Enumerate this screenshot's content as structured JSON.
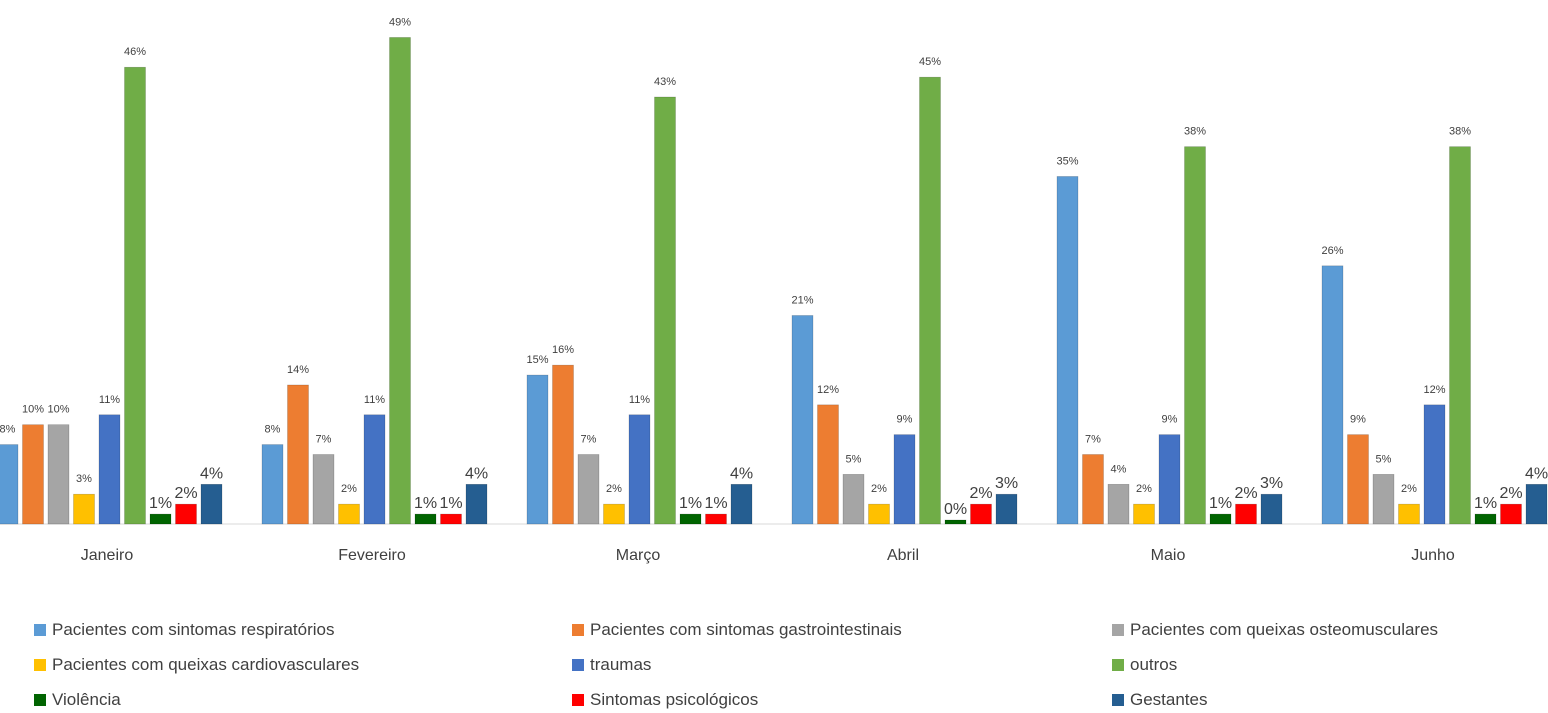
{
  "chart_data": {
    "type": "bar",
    "categories": [
      "Janeiro",
      "Fevereiro",
      "Março",
      "Abril",
      "Maio",
      "Junho"
    ],
    "series": [
      {
        "name": "Pacientes com sintomas respiratórios",
        "color": "#5B9BD5",
        "values": [
          8,
          8,
          15,
          21,
          35,
          26
        ],
        "labels": [
          "8%",
          "8%",
          "15%",
          "21%",
          "35%",
          "26%"
        ]
      },
      {
        "name": "Pacientes com sintomas gastrointestinais",
        "color": "#ED7D31",
        "values": [
          10,
          14,
          16,
          12,
          7,
          9
        ],
        "labels": [
          "10%",
          "14%",
          "16%",
          "12%",
          "7%",
          "9%"
        ]
      },
      {
        "name": "Pacientes com queixas osteomusculares",
        "color": "#A5A5A5",
        "values": [
          10,
          7,
          7,
          5,
          4,
          5
        ],
        "labels": [
          "10%",
          "7%",
          "7%",
          "5%",
          "4%",
          "5%"
        ]
      },
      {
        "name": "Pacientes com queixas cardiovasculares",
        "color": "#FFC000",
        "values": [
          3,
          2,
          2,
          2,
          2,
          2
        ],
        "labels": [
          "3%",
          "2%",
          "2%",
          "2%",
          "2%",
          "2%"
        ]
      },
      {
        "name": "traumas",
        "color": "#4472C4",
        "values": [
          11,
          11,
          11,
          9,
          9,
          12
        ],
        "labels": [
          "11%",
          "11%",
          "11%",
          "9%",
          "9%",
          "12%"
        ]
      },
      {
        "name": "outros",
        "color": "#70AD47",
        "values": [
          46,
          49,
          43,
          45,
          38,
          38
        ],
        "labels": [
          "46%",
          "49%",
          "43%",
          "45%",
          "38%",
          "38%"
        ]
      },
      {
        "name": "Violência",
        "color": "#006400",
        "values": [
          1,
          1,
          1,
          0,
          1,
          1
        ],
        "labels": [
          "1%",
          "1%",
          "1%",
          "0%",
          "1%",
          "1%"
        ]
      },
      {
        "name": "Sintomas psicológicos",
        "color": "#FF0000",
        "values": [
          2,
          1,
          1,
          2,
          2,
          2
        ],
        "labels": [
          "2%",
          "1%",
          "1%",
          "2%",
          "2%",
          "2%"
        ]
      },
      {
        "name": "Gestantes",
        "color": "#255E91",
        "values": [
          4,
          4,
          4,
          3,
          3,
          4
        ],
        "labels": [
          "4%",
          "4%",
          "4%",
          "3%",
          "3%",
          "4%"
        ]
      }
    ],
    "ylim": [
      0,
      50
    ],
    "grid": false,
    "legend_position": "bottom"
  }
}
